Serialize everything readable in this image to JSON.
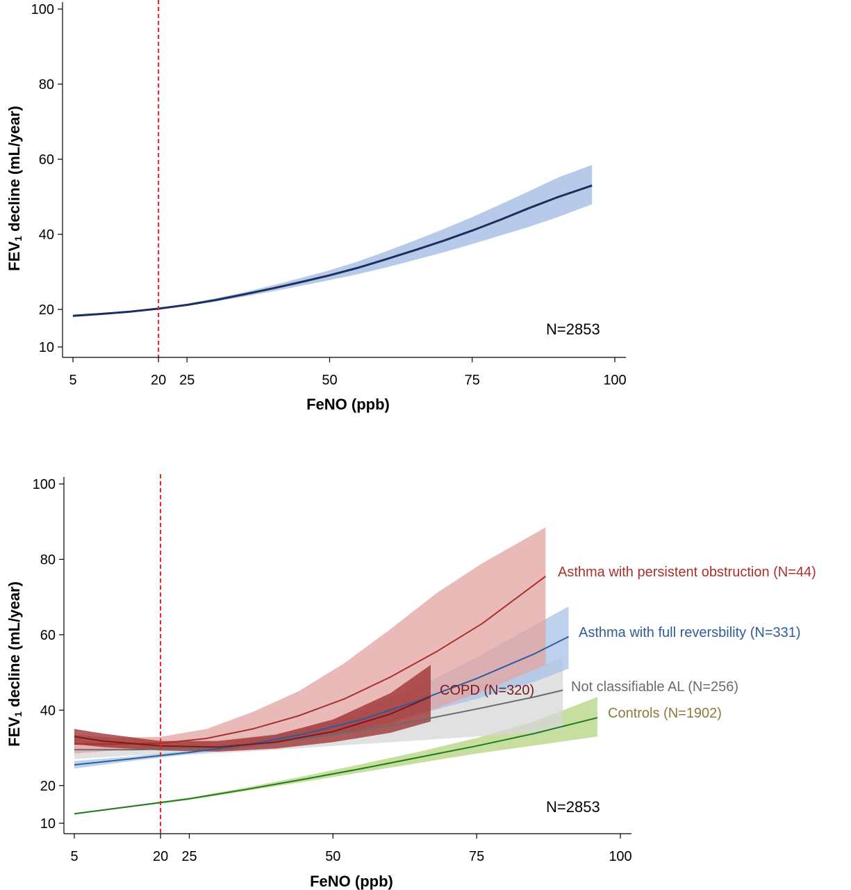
{
  "chart_data": [
    {
      "type": "line",
      "xlabel": "FeNO (ppb)",
      "ylabel_main": "FEV",
      "ylabel_sub": "1",
      "ylabel_rest": " decline (mL/year)",
      "x_ticks": [
        5,
        20,
        25,
        50,
        75,
        100
      ],
      "y_ticks": [
        10,
        20,
        40,
        60,
        80,
        100
      ],
      "xlim": [
        5,
        100
      ],
      "ylim": [
        10,
        100
      ],
      "reference_line": {
        "x": 20,
        "color": "#e8221c"
      },
      "annotation": "N=2853",
      "series": [
        {
          "line_color": "#1b2f5e",
          "band_color": "#9fb8e3",
          "x": [
            5,
            10,
            15,
            20,
            25,
            30,
            35,
            40,
            45,
            50,
            55,
            60,
            65,
            70,
            75,
            80,
            85,
            90,
            96
          ],
          "y": [
            18.3,
            18.8,
            19.4,
            20.2,
            21.2,
            22.5,
            24.0,
            25.6,
            27.3,
            29.1,
            31.1,
            33.4,
            35.8,
            38.3,
            41.0,
            43.9,
            47.0,
            49.9,
            53.0
          ],
          "lower": [
            18.0,
            18.6,
            19.3,
            20.1,
            20.9,
            22.1,
            23.4,
            24.8,
            26.3,
            27.8,
            29.4,
            31.2,
            33.2,
            35.2,
            37.4,
            39.7,
            42.0,
            44.6,
            48.0
          ],
          "upper": [
            18.6,
            19.1,
            19.6,
            20.4,
            21.5,
            22.9,
            24.6,
            26.4,
            28.4,
            30.4,
            32.8,
            35.5,
            38.4,
            41.4,
            44.6,
            48.0,
            51.5,
            55.1,
            58.5
          ]
        }
      ]
    },
    {
      "type": "line",
      "xlabel": "FeNO (ppb)",
      "ylabel_main": "FEV",
      "ylabel_sub": "1",
      "ylabel_rest": " decline (mL/year)",
      "x_ticks": [
        5,
        20,
        25,
        50,
        75,
        100
      ],
      "y_ticks": [
        10,
        20,
        40,
        60,
        80,
        100
      ],
      "xlim": [
        5,
        100
      ],
      "ylim": [
        10,
        100
      ],
      "reference_line": {
        "x": 20,
        "color": "#e8221c"
      },
      "annotation": "N=2853",
      "series": [
        {
          "name": "Controls (N=1902)",
          "line_color": "#1f7a1f",
          "band_color": "#b3d37e",
          "label_color": "#8c7a3a",
          "x": [
            5,
            15,
            25,
            35,
            45,
            55,
            65,
            75,
            85,
            96
          ],
          "y": [
            12.5,
            14.5,
            16.5,
            19.0,
            21.7,
            24.5,
            27.5,
            30.5,
            33.8,
            38.0
          ],
          "lower": [
            12.3,
            14.3,
            16.2,
            18.6,
            21.0,
            23.5,
            26.0,
            28.5,
            30.6,
            33.0
          ],
          "upper": [
            12.7,
            14.7,
            16.8,
            19.5,
            22.5,
            25.7,
            29.0,
            32.6,
            37.0,
            43.5
          ]
        },
        {
          "name": "Not classifiable AL (N=256)",
          "line_color": "#6b6b6b",
          "band_color": "#d7d7d7",
          "label_color": "#6b6b6b",
          "x": [
            5,
            15,
            25,
            35,
            45,
            55,
            65,
            75,
            85,
            90
          ],
          "y": [
            29.5,
            29.5,
            29.8,
            30.8,
            32.4,
            34.6,
            37.3,
            40.3,
            43.5,
            45.3
          ],
          "lower": [
            27.0,
            28.0,
            28.2,
            29.0,
            30.0,
            31.0,
            32.0,
            33.0,
            34.0,
            34.8
          ],
          "upper": [
            32.0,
            31.0,
            31.5,
            32.8,
            35.0,
            38.5,
            42.5,
            46.5,
            51.0,
            54.0
          ]
        },
        {
          "name": "Asthma with full reversbility (N=331)",
          "line_color": "#2e5c99",
          "band_color": "#a7c2e6",
          "label_color": "#2e5c99",
          "x": [
            5,
            15,
            25,
            35,
            45,
            55,
            65,
            75,
            85,
            91
          ],
          "y": [
            25.5,
            27.1,
            28.8,
            30.8,
            33.7,
            37.5,
            42.6,
            48.4,
            54.9,
            59.5
          ],
          "lower": [
            24.5,
            26.5,
            28.3,
            30.0,
            32.2,
            35.2,
            39.0,
            43.0,
            47.5,
            51.0
          ],
          "upper": [
            26.5,
            27.7,
            29.3,
            31.7,
            35.3,
            40.0,
            46.2,
            54.0,
            62.5,
            67.5
          ]
        },
        {
          "name": "Asthma with persistent obstruction (N=44)",
          "line_color": "#a8302b",
          "band_color": "#e3a3a0",
          "label_color": "#a8302b",
          "x": [
            5,
            12,
            20,
            28,
            36,
            44,
            52,
            60,
            68,
            76,
            87
          ],
          "y": [
            31.0,
            31.0,
            31.2,
            32.5,
            35.0,
            38.5,
            43.0,
            48.8,
            55.5,
            63.0,
            75.5
          ],
          "lower": [
            28.5,
            29.3,
            29.5,
            30.0,
            30.8,
            32.0,
            33.8,
            36.5,
            40.5,
            45.0,
            52.0
          ],
          "upper": [
            33.5,
            32.7,
            32.9,
            35.0,
            39.5,
            45.0,
            52.5,
            61.5,
            71.0,
            79.0,
            88.5
          ]
        },
        {
          "name": "COPD (N=320)",
          "line_color": "#7a1a1a",
          "band_color": "#9b2b2b",
          "label_color": "#7a1a1a",
          "x": [
            5,
            10,
            20,
            30,
            40,
            50,
            60,
            67
          ],
          "y": [
            33.0,
            31.8,
            30.5,
            30.2,
            31.5,
            34.3,
            39.0,
            43.6
          ],
          "lower": [
            31.0,
            30.2,
            29.3,
            29.0,
            29.8,
            31.5,
            34.0,
            37.0
          ],
          "upper": [
            35.0,
            33.8,
            31.8,
            31.8,
            33.5,
            37.5,
            44.5,
            52.0
          ]
        }
      ]
    }
  ]
}
